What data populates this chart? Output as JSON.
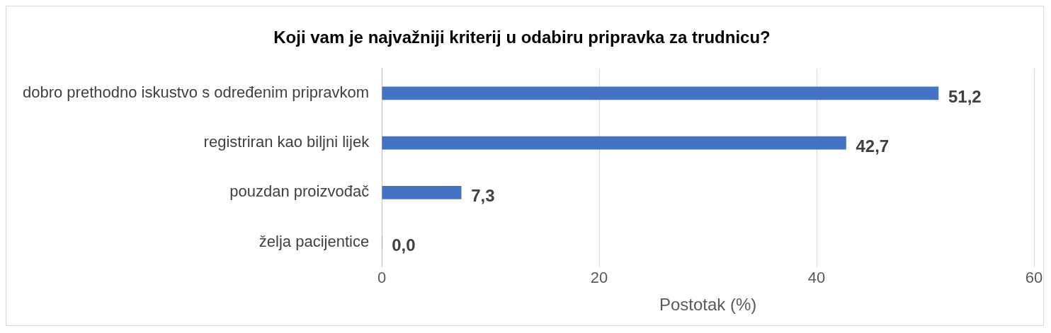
{
  "chart_data": {
    "type": "bar",
    "orientation": "horizontal",
    "title": "Koji vam je najvažniji kriterij u odabiru pripravka za trudnicu?",
    "xlabel": "Postotak (%)",
    "categories": [
      "dobro prethodno iskustvo s određenim pripravkom",
      "registriran kao biljni lijek",
      "pouzdan proizvođač",
      "želja pacijentice"
    ],
    "values": [
      51.2,
      42.7,
      7.3,
      0.0
    ],
    "value_labels": [
      "51,2",
      "42,7",
      "7,3",
      "0,0"
    ],
    "color": "#4472c4",
    "xlim": [
      0,
      60
    ],
    "xticks": [
      0,
      20,
      40,
      60
    ],
    "grid": "x",
    "legend": false
  }
}
